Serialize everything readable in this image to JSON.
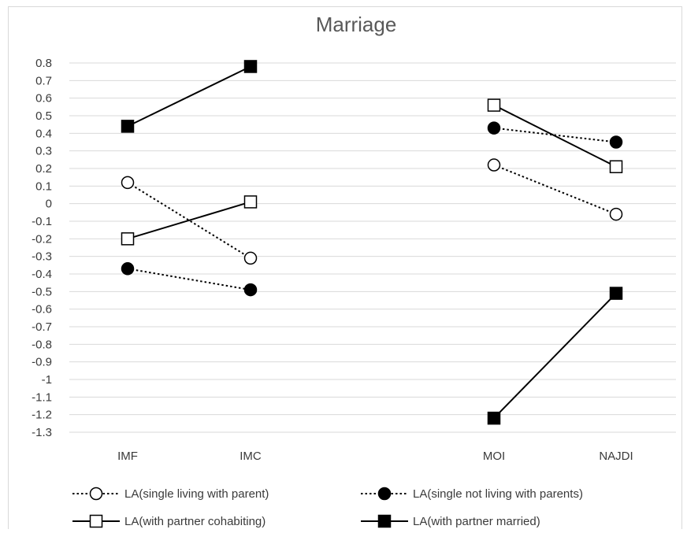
{
  "chart_data": {
    "type": "line",
    "title": "Marriage",
    "xlabel": "",
    "ylabel": "",
    "ylim": [
      -1.3,
      0.8
    ],
    "ytick_step": 0.1,
    "yticks": [
      "0.8",
      "0.7",
      "0.6",
      "0.5",
      "0.4",
      "0.3",
      "0.2",
      "0.1",
      "0",
      "-0.1",
      "-0.2",
      "-0.3",
      "-0.4",
      "-0.5",
      "-0.6",
      "-0.7",
      "-0.8",
      "-0.9",
      "-1",
      "-1.1",
      "-1.2",
      "-1.3"
    ],
    "categories": [
      "IMF",
      "IMC",
      "MOI",
      "NAJDI"
    ],
    "grid": true,
    "legend_position": "bottom",
    "series": [
      {
        "name": "LA(single living with parent)",
        "line": "dotted",
        "marker": "circle-open",
        "values": [
          0.12,
          -0.31,
          0.22,
          -0.06
        ]
      },
      {
        "name": "LA(single not living with parents)",
        "line": "dotted",
        "marker": "circle-filled",
        "values": [
          -0.37,
          -0.49,
          0.43,
          0.35
        ]
      },
      {
        "name": "LA(with partner cohabiting)",
        "line": "solid",
        "marker": "square-open",
        "values": [
          -0.2,
          0.01,
          0.56,
          0.21
        ]
      },
      {
        "name": "LA(with partner married)",
        "line": "solid",
        "marker": "square-filled",
        "values": [
          0.44,
          0.78,
          -1.22,
          -0.51
        ]
      }
    ],
    "segments": [
      [
        0,
        1
      ],
      [
        2,
        3
      ]
    ],
    "colors": {
      "line": "#000000",
      "grid": "#d9d9d9",
      "text": "#3a3a3a",
      "title": "#595959"
    }
  }
}
